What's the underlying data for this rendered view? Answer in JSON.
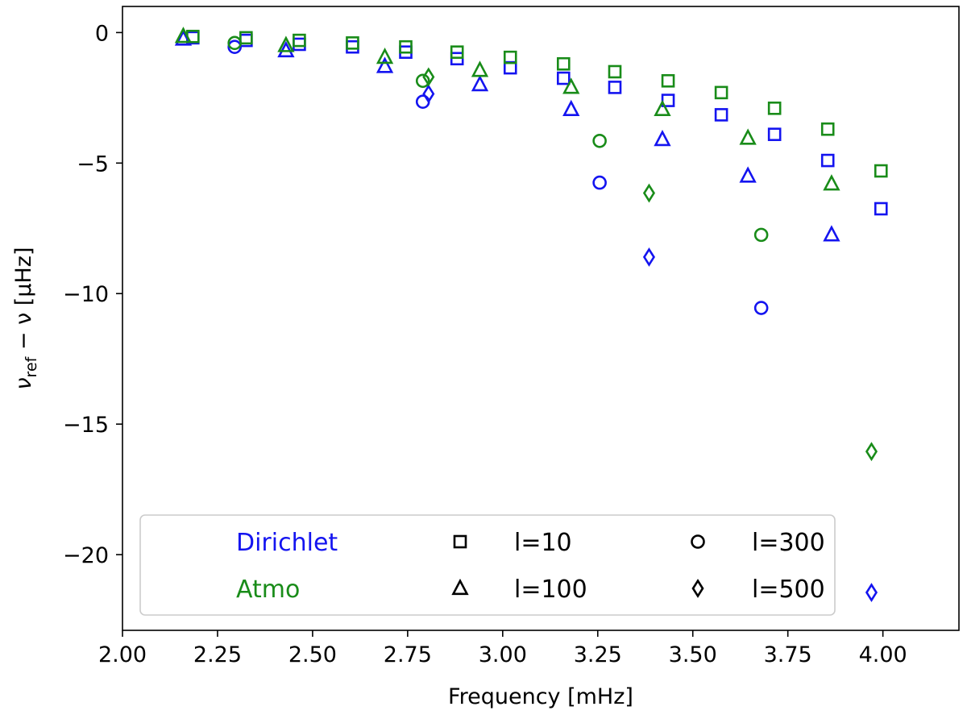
{
  "chart_data": {
    "type": "scatter",
    "title": "",
    "xlabel": "Frequency [mHz]",
    "ylabel": {
      "main": "ν",
      "sub": "ref",
      "rest": " − ν [μHz]"
    },
    "xlim": [
      2.0,
      4.2
    ],
    "ylim": [
      -22.9,
      1.0
    ],
    "xticks": [
      2.0,
      2.25,
      2.5,
      2.75,
      3.0,
      3.25,
      3.5,
      3.75,
      4.0
    ],
    "xtick_labels": [
      "2.00",
      "2.25",
      "2.50",
      "2.75",
      "3.00",
      "3.25",
      "3.50",
      "3.75",
      "4.00"
    ],
    "yticks": [
      0,
      -5,
      -10,
      -15,
      -20
    ],
    "ytick_labels": [
      "0",
      "−5",
      "−10",
      "−15",
      "−20"
    ],
    "grid": false,
    "legend_position": "bottom",
    "colors": {
      "Dirichlet": "#1414f0",
      "Atmo": "#198c19"
    },
    "legend": {
      "boundaries": [
        {
          "label": "Dirichlet",
          "color": "#1414f0"
        },
        {
          "label": "Atmo",
          "color": "#198c19"
        }
      ],
      "degrees": [
        {
          "label": "l=10",
          "marker": "square"
        },
        {
          "label": "l=100",
          "marker": "triangle"
        },
        {
          "label": "l=300",
          "marker": "circle"
        },
        {
          "label": "l=500",
          "marker": "diamond"
        }
      ]
    },
    "series": [
      {
        "boundary": "Dirichlet",
        "degree": "l=10",
        "marker": "square",
        "points": [
          [
            2.185,
            -0.2
          ],
          [
            2.325,
            -0.3
          ],
          [
            2.465,
            -0.45
          ],
          [
            2.605,
            -0.55
          ],
          [
            2.745,
            -0.75
          ],
          [
            2.88,
            -1.0
          ],
          [
            3.02,
            -1.35
          ],
          [
            3.16,
            -1.75
          ],
          [
            3.295,
            -2.1
          ],
          [
            3.435,
            -2.6
          ],
          [
            3.575,
            -3.15
          ],
          [
            3.715,
            -3.9
          ],
          [
            3.855,
            -4.9
          ],
          [
            3.995,
            -6.75
          ]
        ]
      },
      {
        "boundary": "Atmo",
        "degree": "l=10",
        "marker": "square",
        "points": [
          [
            2.185,
            -0.15
          ],
          [
            2.325,
            -0.2
          ],
          [
            2.465,
            -0.3
          ],
          [
            2.605,
            -0.4
          ],
          [
            2.745,
            -0.55
          ],
          [
            2.88,
            -0.75
          ],
          [
            3.02,
            -0.95
          ],
          [
            3.16,
            -1.2
          ],
          [
            3.295,
            -1.5
          ],
          [
            3.435,
            -1.85
          ],
          [
            3.575,
            -2.3
          ],
          [
            3.715,
            -2.9
          ],
          [
            3.855,
            -3.7
          ],
          [
            3.995,
            -5.3
          ]
        ]
      },
      {
        "boundary": "Dirichlet",
        "degree": "l=100",
        "marker": "triangle",
        "points": [
          [
            2.16,
            -0.25
          ],
          [
            2.43,
            -0.7
          ],
          [
            2.69,
            -1.3
          ],
          [
            2.94,
            -2.0
          ],
          [
            3.18,
            -2.95
          ],
          [
            3.42,
            -4.1
          ],
          [
            3.645,
            -5.5
          ],
          [
            3.865,
            -7.75
          ]
        ]
      },
      {
        "boundary": "Atmo",
        "degree": "l=100",
        "marker": "triangle",
        "points": [
          [
            2.16,
            -0.15
          ],
          [
            2.43,
            -0.5
          ],
          [
            2.69,
            -0.95
          ],
          [
            2.94,
            -1.45
          ],
          [
            3.18,
            -2.1
          ],
          [
            3.42,
            -2.95
          ],
          [
            3.645,
            -4.05
          ],
          [
            3.865,
            -5.8
          ]
        ]
      },
      {
        "boundary": "Dirichlet",
        "degree": "l=300",
        "marker": "circle",
        "points": [
          [
            2.295,
            -0.55
          ],
          [
            2.79,
            -2.65
          ],
          [
            3.255,
            -5.75
          ],
          [
            3.68,
            -10.55
          ]
        ]
      },
      {
        "boundary": "Atmo",
        "degree": "l=300",
        "marker": "circle",
        "points": [
          [
            2.295,
            -0.4
          ],
          [
            2.79,
            -1.85
          ],
          [
            3.255,
            -4.15
          ],
          [
            3.68,
            -7.75
          ]
        ]
      },
      {
        "boundary": "Dirichlet",
        "degree": "l=500",
        "marker": "diamond",
        "points": [
          [
            2.805,
            -2.35
          ],
          [
            3.385,
            -8.6
          ],
          [
            3.97,
            -21.45
          ]
        ]
      },
      {
        "boundary": "Atmo",
        "degree": "l=500",
        "marker": "diamond",
        "points": [
          [
            2.805,
            -1.7
          ],
          [
            3.385,
            -6.15
          ],
          [
            3.97,
            -16.05
          ]
        ]
      }
    ]
  }
}
